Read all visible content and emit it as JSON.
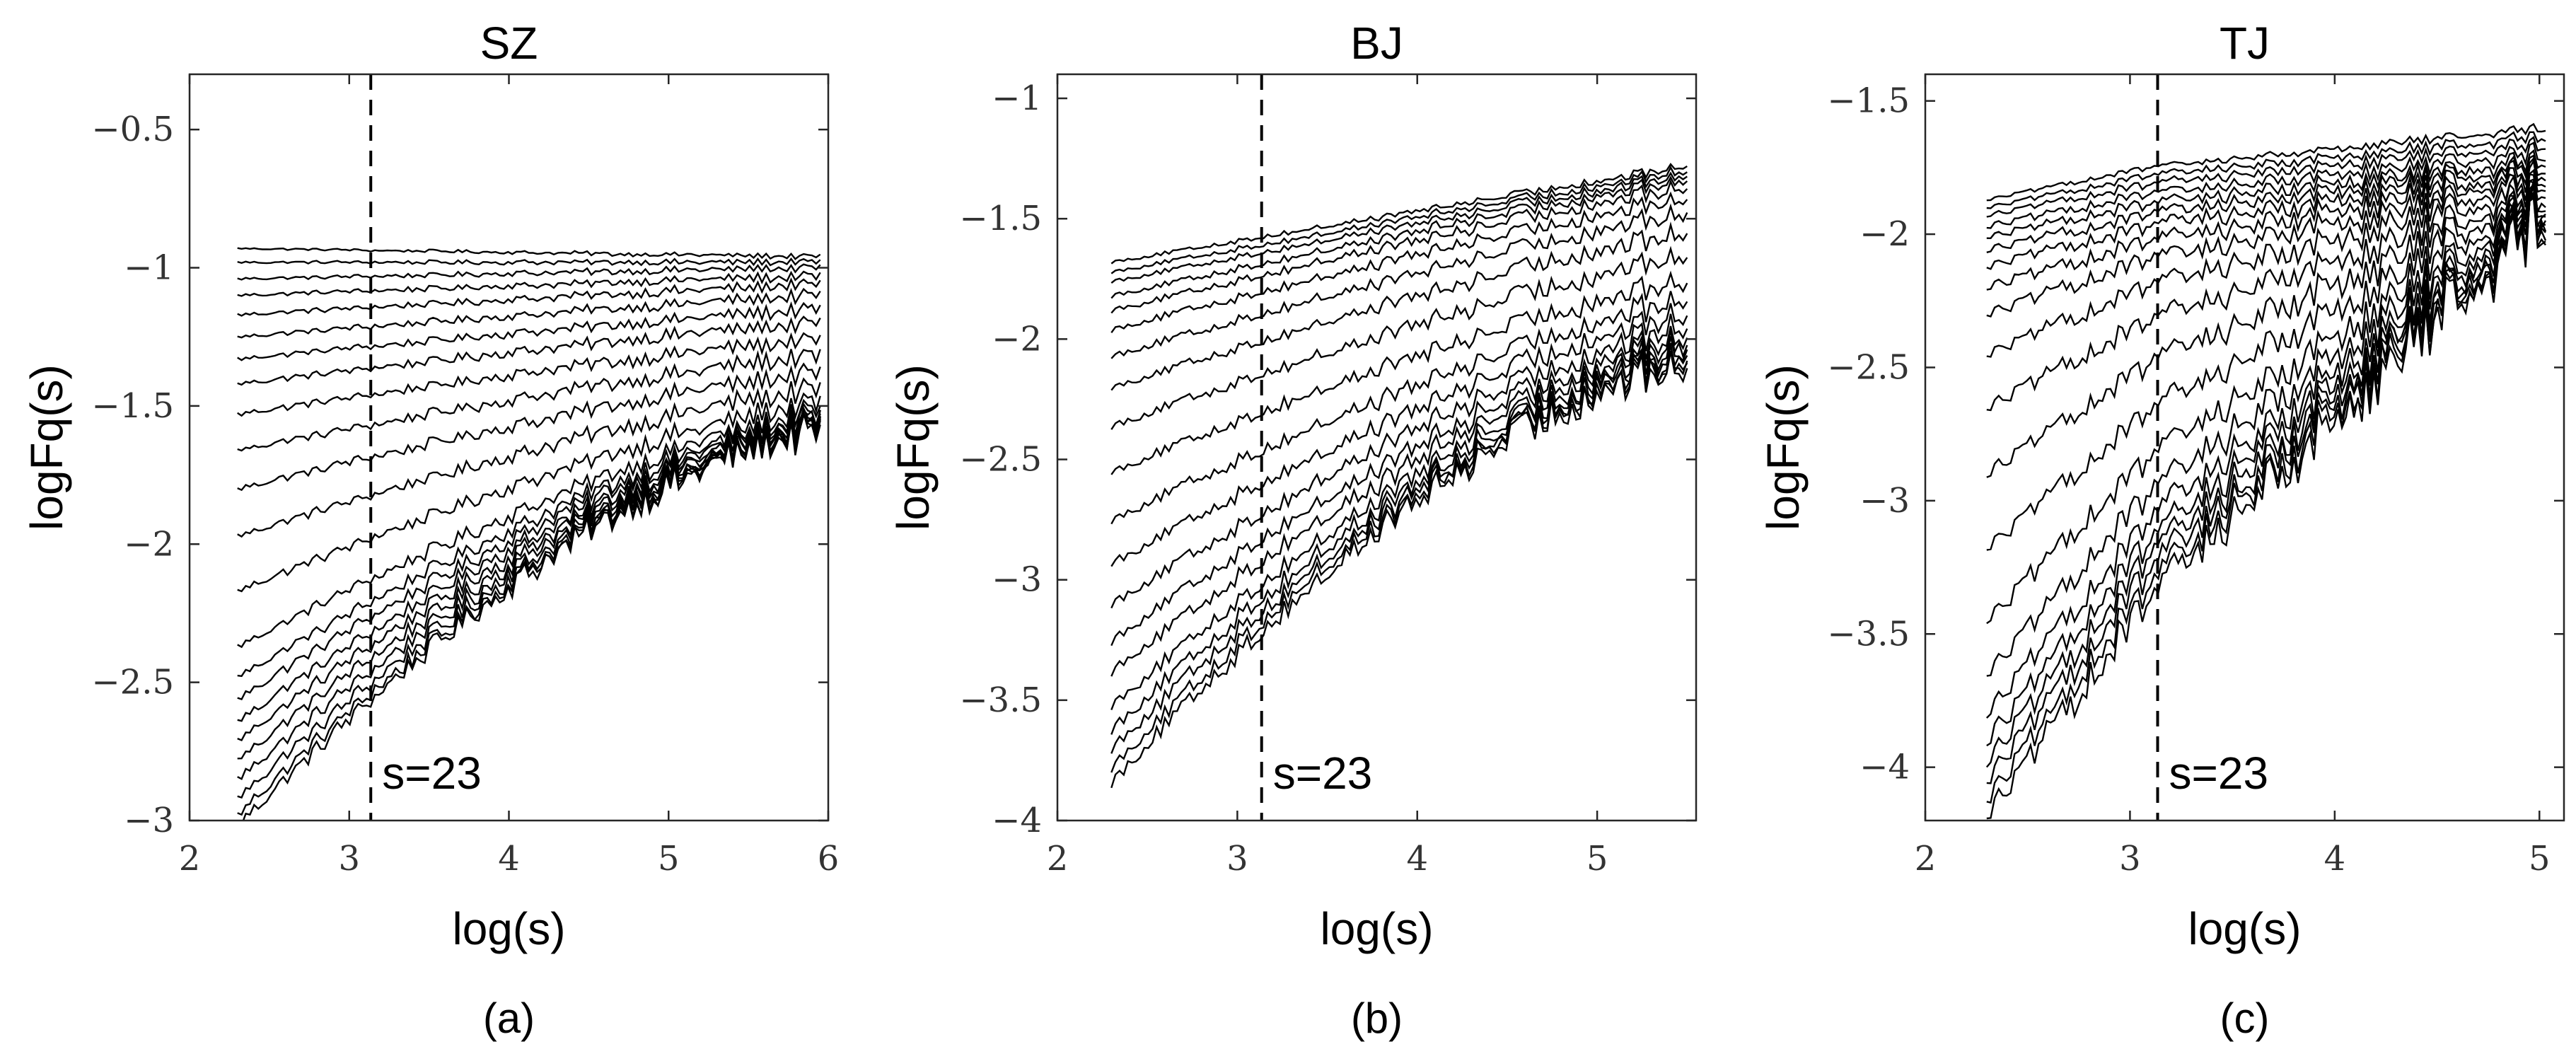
{
  "chart_data": [
    {
      "type": "line",
      "panel": "(a)",
      "title": "SZ",
      "xlabel": "log(s)",
      "ylabel": "logFq(s)",
      "xlim": [
        2,
        6
      ],
      "ylim": [
        -3,
        -0.3
      ],
      "x_ticks": [
        2,
        3,
        4,
        5,
        6
      ],
      "y_ticks": [
        -3,
        -2.5,
        -2,
        -1.5,
        -1,
        -0.5
      ],
      "x_tick_labels": [
        "2",
        "3",
        "4",
        "5",
        "6"
      ],
      "y_tick_labels": [
        "−3",
        "−2.5",
        "−2",
        "−1.5",
        "−1",
        "−0.5"
      ],
      "x_start": 2.3,
      "x_end": 5.95,
      "vline_x": 3.135,
      "annotation": "s=23",
      "series_start_values": [
        -0.93,
        -0.98,
        -1.04,
        -1.1,
        -1.17,
        -1.25,
        -1.33,
        -1.42,
        -1.53,
        -1.66,
        -1.8,
        -1.97,
        -2.17,
        -2.37,
        -2.48,
        -2.56,
        -2.64,
        -2.71,
        -2.78,
        -2.85,
        -2.92,
        -2.98,
        -3.02
      ],
      "series_end_values": [
        -0.96,
        -0.98,
        -1.0,
        -1.03,
        -1.06,
        -1.1,
        -1.15,
        -1.2,
        -1.26,
        -1.32,
        -1.38,
        -1.44,
        -1.49,
        -1.52,
        -1.54,
        -1.55,
        -1.56,
        -1.57,
        -1.58,
        -1.585,
        -1.59,
        -1.595,
        -1.6
      ],
      "noise_amplitude": [
        0.01,
        0.07
      ],
      "kink_x": null
    },
    {
      "type": "line",
      "panel": "(b)",
      "title": "BJ",
      "xlabel": "log(s)",
      "ylabel": "logFq(s)",
      "xlim": [
        2,
        5.55
      ],
      "ylim": [
        -4,
        -0.9
      ],
      "x_ticks": [
        2,
        3,
        4,
        5
      ],
      "y_ticks": [
        -4,
        -3.5,
        -3,
        -2.5,
        -2,
        -1.5,
        -1
      ],
      "x_tick_labels": [
        "2",
        "3",
        "4",
        "5"
      ],
      "y_tick_labels": [
        "−4",
        "−3.5",
        "−3",
        "−2.5",
        "−2",
        "−1.5",
        "−1"
      ],
      "x_start": 2.3,
      "x_end": 5.5,
      "vline_x": 3.135,
      "annotation": "s=23",
      "series_start_values": [
        -1.68,
        -1.72,
        -1.76,
        -1.82,
        -1.88,
        -1.96,
        -2.07,
        -2.2,
        -2.36,
        -2.55,
        -2.75,
        -2.93,
        -3.1,
        -3.25,
        -3.38,
        -3.52,
        -3.62,
        -3.7,
        -3.78,
        -3.84
      ],
      "series_end_values": [
        -1.28,
        -1.3,
        -1.32,
        -1.34,
        -1.37,
        -1.42,
        -1.48,
        -1.56,
        -1.66,
        -1.76,
        -1.84,
        -1.9,
        -1.95,
        -1.99,
        -2.02,
        -2.05,
        -2.07,
        -2.09,
        -2.1,
        -2.12
      ],
      "noise_amplitude": [
        0.02,
        0.09
      ],
      "kink_x": null
    },
    {
      "type": "line",
      "panel": "(c)",
      "title": "TJ",
      "xlabel": "log(s)",
      "ylabel": "logFq(s)",
      "xlim": [
        2,
        5.12
      ],
      "ylim": [
        -4.2,
        -1.4
      ],
      "x_ticks": [
        2,
        3,
        4,
        5
      ],
      "y_ticks": [
        -4,
        -3.5,
        -3,
        -2.5,
        -2,
        -1.5
      ],
      "x_tick_labels": [
        "2",
        "3",
        "4",
        "5"
      ],
      "y_tick_labels": [
        "−4",
        "−3.5",
        "−3",
        "−2.5",
        "−2",
        "−1.5"
      ],
      "x_start": 2.3,
      "x_end": 5.03,
      "vline_x": 3.135,
      "annotation": "s=23",
      "series_start_values": [
        -1.87,
        -1.9,
        -1.93,
        -1.97,
        -2.01,
        -2.06,
        -2.12,
        -2.2,
        -2.3,
        -2.45,
        -2.65,
        -2.9,
        -3.18,
        -3.45,
        -3.65,
        -3.8,
        -3.9,
        -3.98,
        -4.05,
        -4.12,
        -4.18
      ],
      "series_end_values": [
        -1.6,
        -1.63,
        -1.66,
        -1.69,
        -1.72,
        -1.74,
        -1.76,
        -1.78,
        -1.8,
        -1.82,
        -1.84,
        -1.85,
        -1.86,
        -1.87,
        -1.88,
        -1.89,
        -1.9,
        -1.905,
        -1.91,
        -1.915,
        -1.92
      ],
      "noise_amplitude": [
        0.02,
        0.14
      ],
      "kink_x": 3.1
    }
  ]
}
